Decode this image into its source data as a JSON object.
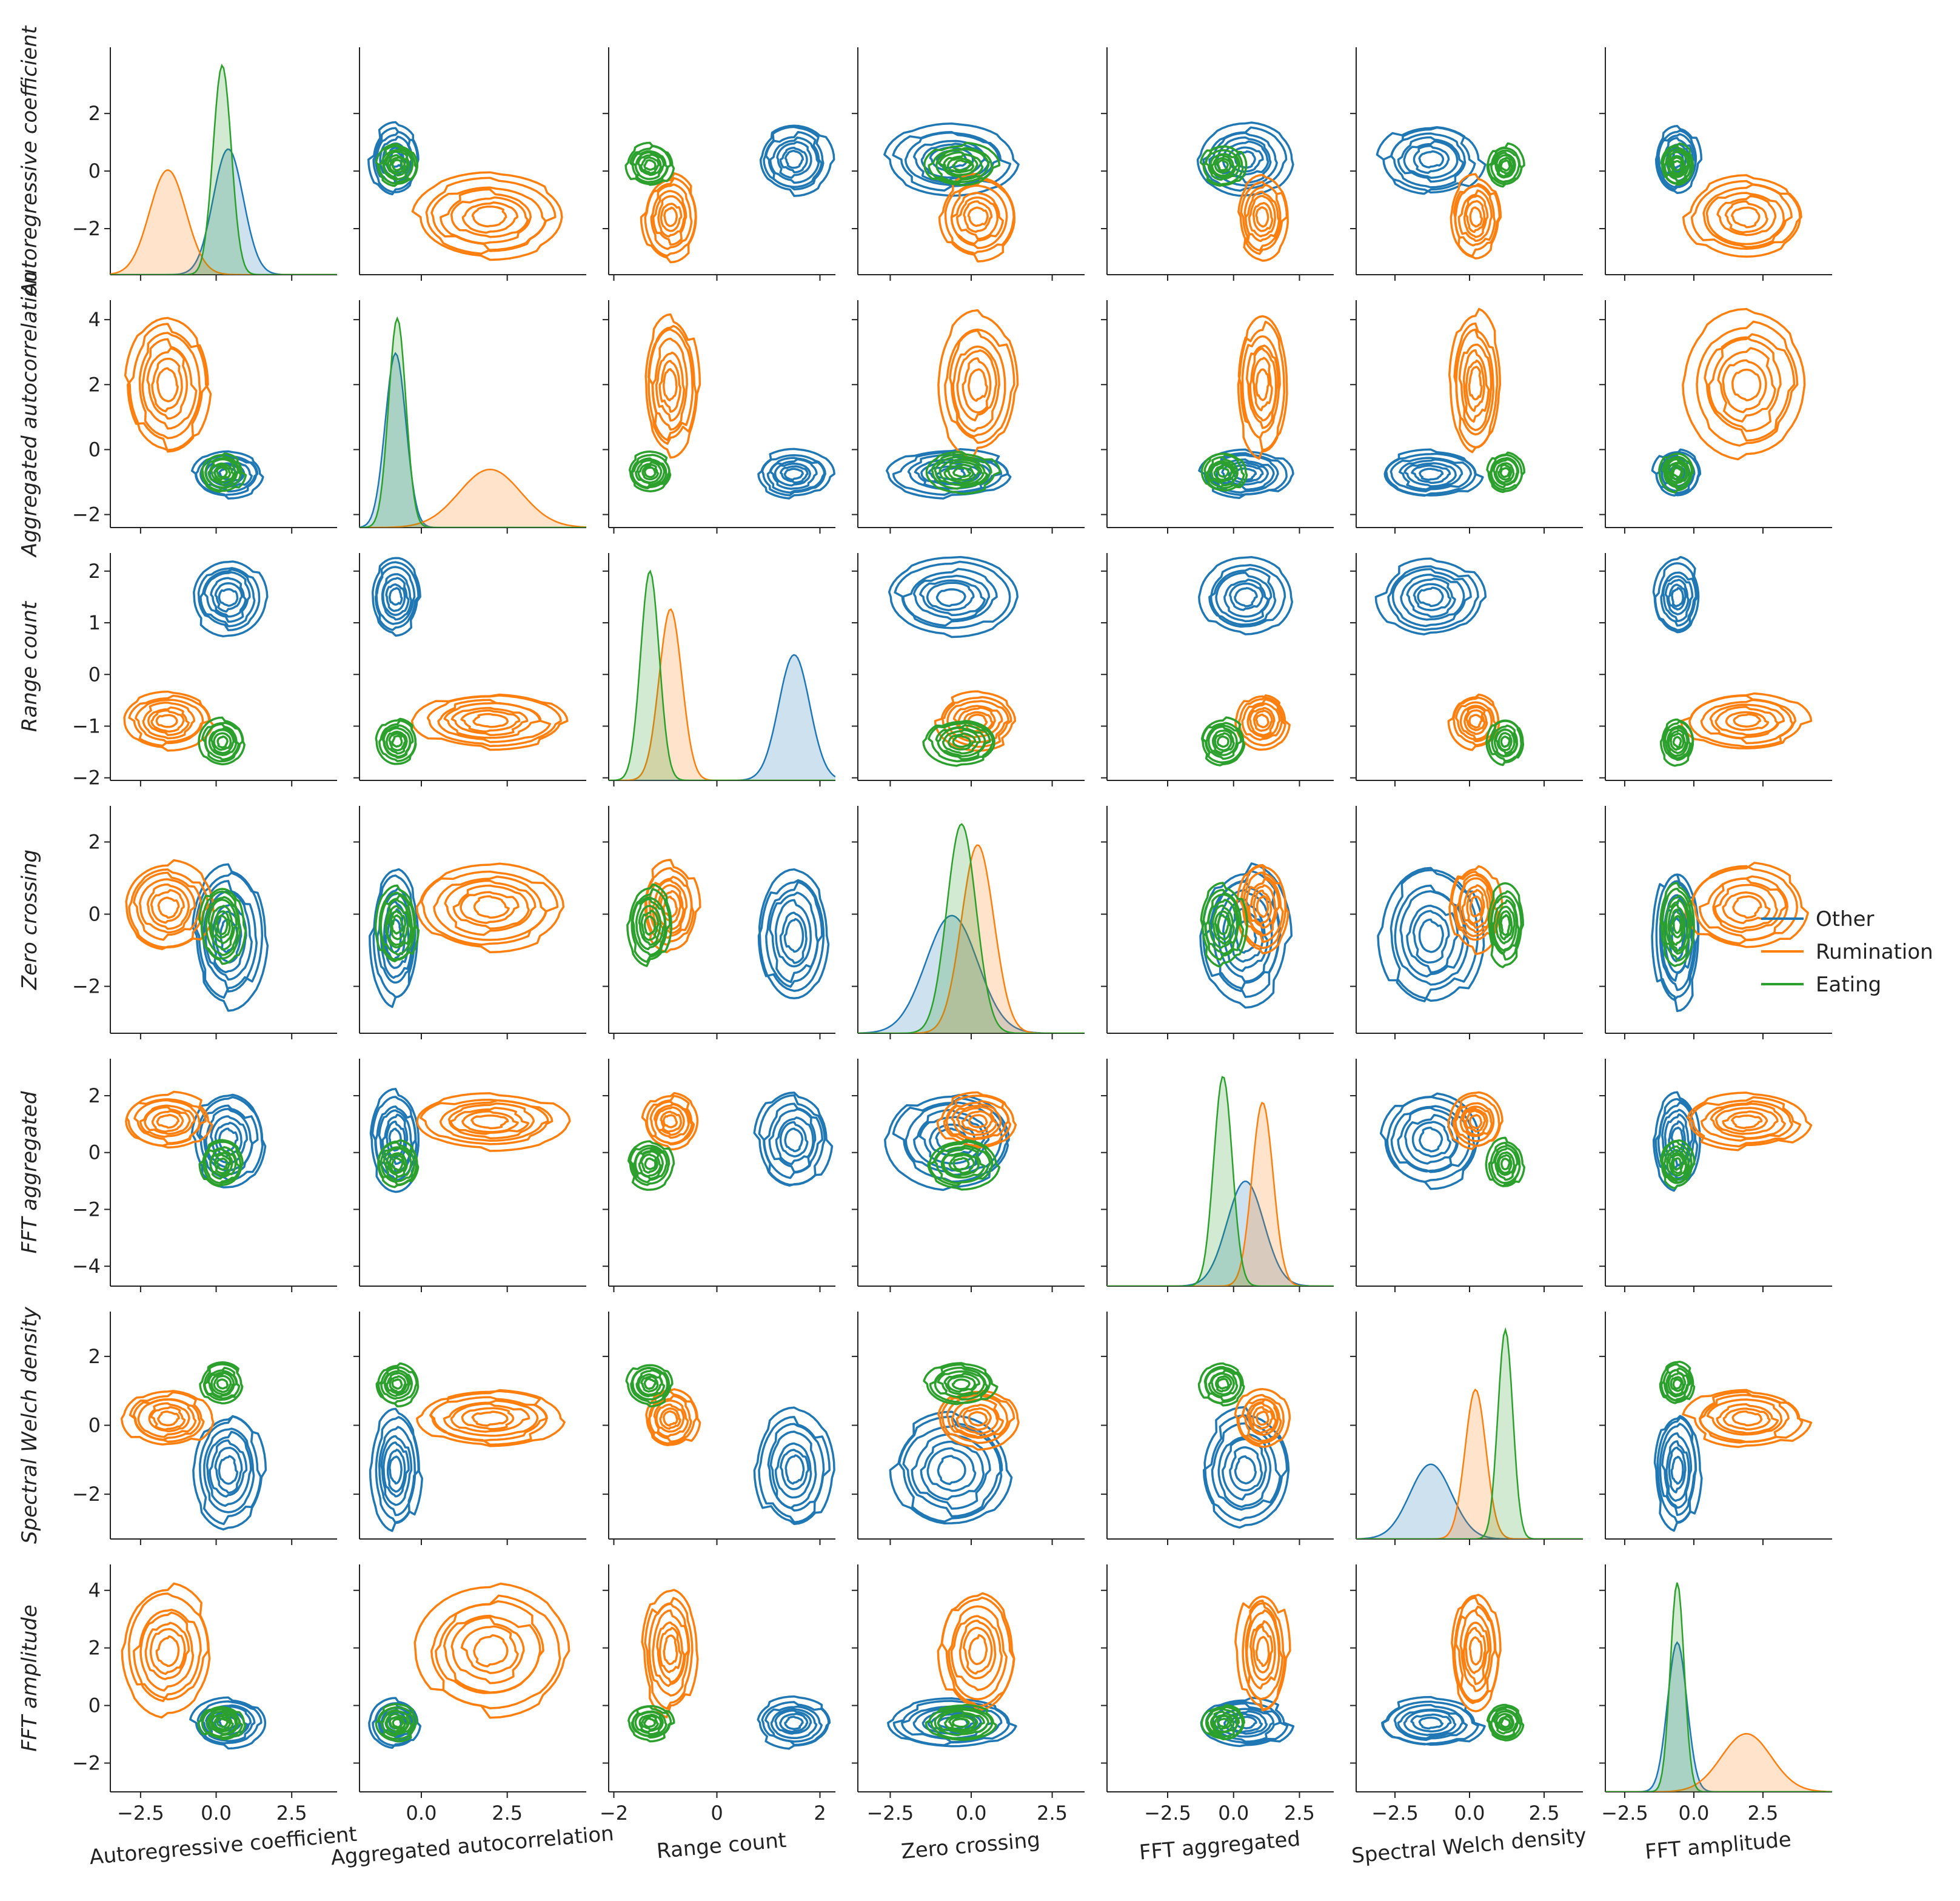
{
  "chart_data": {
    "type": "pairplot",
    "description_of_panels": "diagonal: kde density per class; off-diagonal: kde contour per class",
    "variables": [
      "Autoregressive coefficient",
      "Aggregated autocorrelation",
      "Range count",
      "Zero crossing",
      "FFT aggregated",
      "Spectral Welch density",
      "FFT amplitude"
    ],
    "x_ticks": [
      [
        -2.5,
        0.0,
        2.5
      ],
      [
        0.0,
        2.5
      ],
      [
        -2,
        0,
        2
      ],
      [
        -2.5,
        0.0,
        2.5
      ],
      [
        -2.5,
        0.0,
        2.5
      ],
      [
        -2.5,
        0.0,
        2.5
      ],
      [
        -2.5,
        0.0,
        2.5
      ]
    ],
    "x_tick_labels": [
      [
        "−2.5",
        "0.0",
        "2.5"
      ],
      [
        "0.0",
        "2.5"
      ],
      [
        "−2",
        "0",
        "2"
      ],
      [
        "−2.5",
        "0.0",
        "2.5"
      ],
      [
        "−2.5",
        "0.0",
        "2.5"
      ],
      [
        "−2.5",
        "0.0",
        "2.5"
      ],
      [
        "−2.5",
        "0.0",
        "2.5"
      ]
    ],
    "x_ranges": [
      [
        -3.5,
        4.0
      ],
      [
        -1.8,
        4.8
      ],
      [
        -2.1,
        2.3
      ],
      [
        -3.5,
        3.5
      ],
      [
        -4.8,
        3.8
      ],
      [
        -3.8,
        3.8
      ],
      [
        -3.2,
        5.0
      ]
    ],
    "y_ticks": [
      [
        -2,
        0,
        2
      ],
      [
        -2,
        0,
        2,
        4
      ],
      [
        -2,
        -1,
        0,
        1,
        2
      ],
      [
        -2,
        0,
        2
      ],
      [
        -4,
        -2,
        0,
        2
      ],
      [
        -2,
        0,
        2
      ],
      [
        -2,
        0,
        2,
        4
      ]
    ],
    "y_tick_labels": [
      [
        "−2",
        "0",
        "2"
      ],
      [
        "−2",
        "0",
        "2",
        "4"
      ],
      [
        "−2",
        "−1",
        "0",
        "1",
        "2"
      ],
      [
        "−2",
        "0",
        "2"
      ],
      [
        "−4",
        "−2",
        "0",
        "2"
      ],
      [
        "−2",
        "0",
        "2"
      ],
      [
        "−2",
        "0",
        "2",
        "4"
      ]
    ],
    "y_ranges": [
      [
        -3.6,
        4.3
      ],
      [
        -2.4,
        4.6
      ],
      [
        -2.05,
        2.35
      ],
      [
        -3.3,
        3.0
      ],
      [
        -4.7,
        3.3
      ],
      [
        -3.3,
        3.3
      ],
      [
        -3.0,
        4.9
      ]
    ],
    "series": [
      {
        "name": "Other",
        "color": "#1f77b4",
        "centers": [
          0.4,
          -0.75,
          1.5,
          -0.6,
          0.45,
          -1.3,
          -0.6
        ],
        "spreads": [
          0.5,
          0.3,
          0.3,
          0.8,
          0.7,
          0.7,
          0.35
        ]
      },
      {
        "name": "Rumination",
        "color": "#ff7f0e",
        "centers": [
          -1.6,
          2.0,
          -0.9,
          0.2,
          1.1,
          0.2,
          1.9
        ],
        "spreads": [
          0.6,
          0.9,
          0.22,
          0.5,
          0.4,
          0.35,
          0.9
        ]
      },
      {
        "name": "Eating",
        "color": "#2ca02c",
        "centers": [
          0.2,
          -0.7,
          -1.3,
          -0.3,
          -0.4,
          1.2,
          -0.6
        ],
        "spreads": [
          0.3,
          0.25,
          0.18,
          0.45,
          0.35,
          0.25,
          0.25
        ]
      }
    ],
    "legend_position": "right"
  }
}
